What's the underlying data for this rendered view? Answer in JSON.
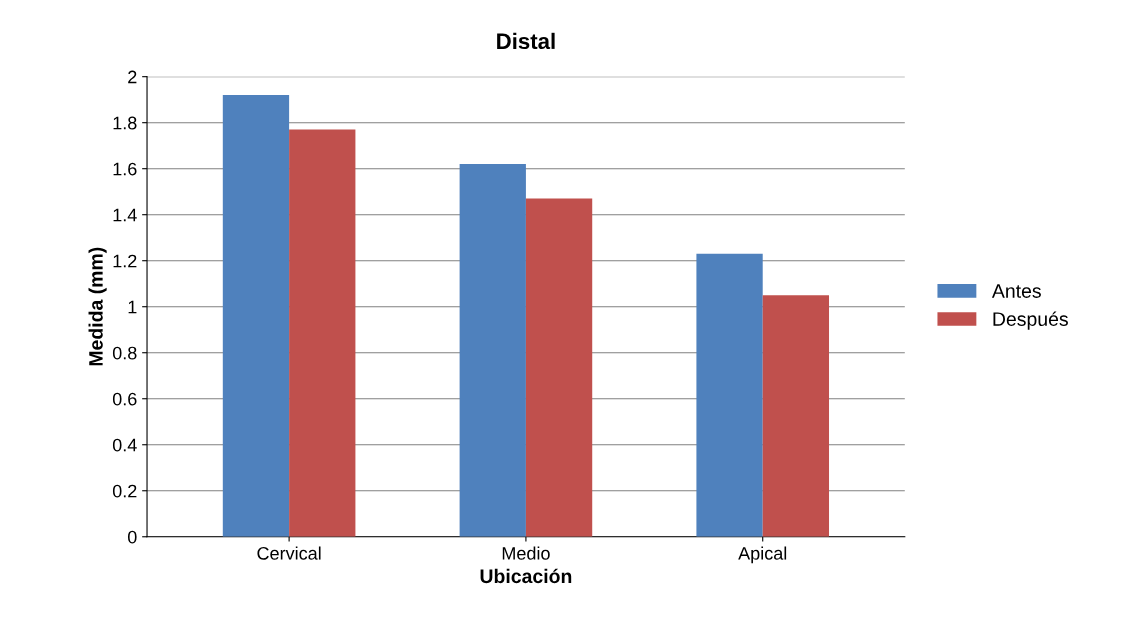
{
  "chart_data": {
    "type": "bar",
    "title": "Distal",
    "xlabel": "Ubicación",
    "ylabel": "Medida (mm)",
    "categories": [
      "Cervical",
      "Medio",
      "Apical"
    ],
    "series": [
      {
        "name": "Antes",
        "color": "#4f81bd",
        "values": [
          1.92,
          1.62,
          1.23
        ]
      },
      {
        "name": "Después",
        "color": "#c0504d",
        "values": [
          1.77,
          1.47,
          1.05
        ]
      }
    ],
    "ylim": [
      0,
      2
    ],
    "yticks": [
      0,
      0.2,
      0.4,
      0.6,
      0.8,
      1,
      1.2,
      1.4,
      1.6,
      1.8,
      2
    ],
    "grid": "y",
    "legend": "right"
  }
}
